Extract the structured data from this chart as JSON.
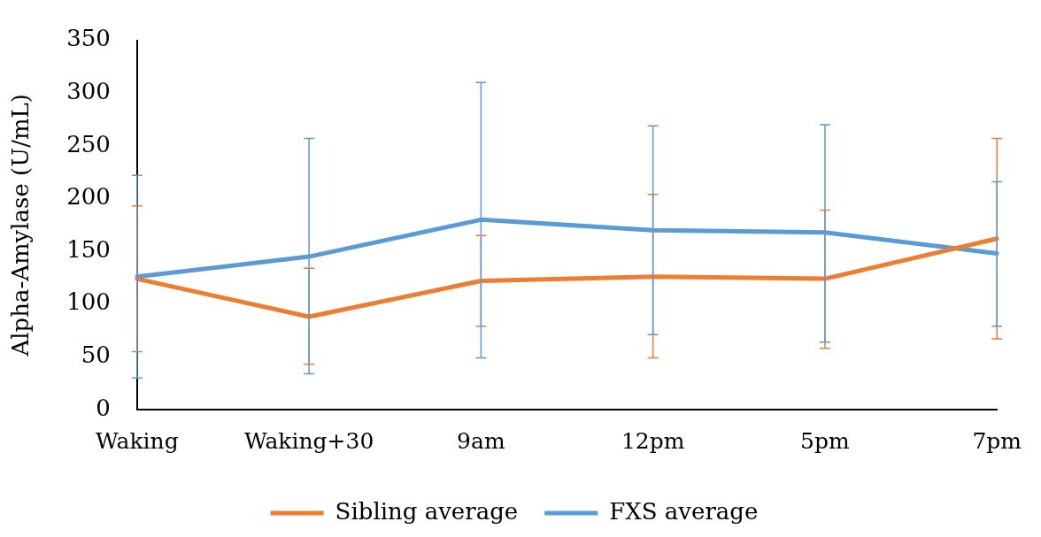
{
  "chart_data": {
    "type": "line",
    "ylabel": "Alpha-Amylase (U/mL)",
    "categories": [
      "Waking",
      "Waking+30",
      "9am",
      "12pm",
      "5pm",
      "7pm"
    ],
    "series": [
      {
        "name": "Sibling average",
        "color": "#ed7d31",
        "values": [
          124,
          88,
          122,
          126,
          124,
          162
        ],
        "errors": [
          [
            55,
            193
          ],
          [
            43,
            134
          ],
          [
            79,
            165
          ],
          [
            49,
            204
          ],
          [
            58,
            189
          ],
          [
            67,
            257
          ]
        ]
      },
      {
        "name": "FXS average",
        "color": "#5b9bd5",
        "values": [
          126,
          145,
          180,
          170,
          168,
          148
        ],
        "errors": [
          [
            30,
            222
          ],
          [
            34,
            257
          ],
          [
            49,
            310
          ],
          [
            71,
            269
          ],
          [
            64,
            270
          ],
          [
            79,
            216
          ]
        ]
      }
    ],
    "ylim": [
      0,
      350
    ],
    "yticks": [
      0,
      50,
      100,
      150,
      200,
      250,
      300,
      350
    ],
    "grid": false,
    "legend": "bottom",
    "marker": "none",
    "line_style": "solid"
  }
}
